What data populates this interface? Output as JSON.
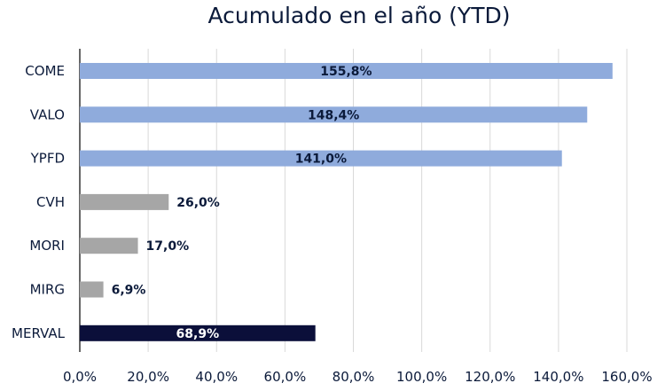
{
  "chart_data": {
    "type": "bar",
    "orientation": "horizontal",
    "title": "Acumulado en el año (YTD)",
    "categories": [
      "COME",
      "VALO",
      "YPFD",
      "CVH",
      "MORI",
      "MIRG",
      "MERVAL"
    ],
    "values": [
      155.8,
      148.4,
      141.0,
      26.0,
      17.0,
      6.9,
      68.9
    ],
    "data_labels": [
      "155,8%",
      "148,4%",
      "141,0%",
      "26,0%",
      "17,0%",
      "6,9%",
      "68,9%"
    ],
    "bar_colors": [
      "#8fabdc",
      "#8fabdc",
      "#8fabdc",
      "#a6a6a6",
      "#a6a6a6",
      "#a6a6a6",
      "#0b0f3a"
    ],
    "label_colors": [
      "#0b1a3a",
      "#0b1a3a",
      "#0b1a3a",
      "#0b1a3a",
      "#0b1a3a",
      "#0b1a3a",
      "#ffffff"
    ],
    "label_inside": [
      true,
      true,
      true,
      false,
      false,
      false,
      true
    ],
    "xlim": [
      0,
      160
    ],
    "xticks": [
      0,
      20,
      40,
      60,
      80,
      100,
      120,
      140,
      160
    ],
    "xtick_labels": [
      "0,0%",
      "20,0%",
      "40,0%",
      "60,0%",
      "80,0%",
      "100,0%",
      "120,0%",
      "140,0%",
      "160,0%"
    ],
    "grid": "vertical",
    "legend": false
  }
}
